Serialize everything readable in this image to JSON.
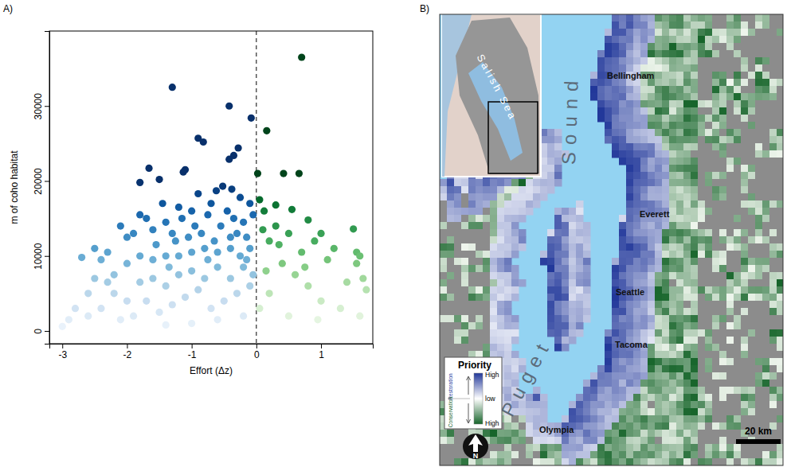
{
  "chart_data": [
    {
      "type": "scatter",
      "panel_label": "A)",
      "x_label": "Effort (Δz)",
      "y_label": "m of coho habitat",
      "xlim": [
        -3.2,
        1.8
      ],
      "ylim": [
        -1700,
        40000
      ],
      "xticks": [
        -3,
        -2,
        -1,
        0,
        1
      ],
      "yticks": [
        0,
        10000,
        20000,
        30000
      ],
      "reference_line": {
        "x": 0,
        "line_style": "dashed"
      },
      "series": [
        {
          "marker": "circle",
          "x": [
            -1.3,
            -0.42,
            0.7,
            -0.08,
            -0.9,
            -0.82,
            -0.28,
            -0.35,
            -0.42,
            0.16,
            0.02,
            0.42,
            0.66,
            -1.66,
            -1.1,
            -1.13,
            -1.8,
            -1.5,
            -0.52,
            -0.38,
            -0.62,
            -0.9,
            -1.45,
            -1.2,
            -0.25,
            -0.1,
            0.05,
            0.12,
            0.3,
            0.55,
            0.8,
            1.0,
            1.5,
            1.55,
            1.6,
            1.55,
            1.65,
            1.7,
            1.6,
            1.2,
            1.1,
            0.9,
            0.7,
            0.5,
            0.3,
            0.2,
            0.1,
            0.4,
            0.6,
            0.8,
            1.0,
            1.3,
            0.2,
            0.05,
            0.5,
            0.15,
            0.35,
            0.75,
            1.4,
            0.95,
            -2.5,
            -2.7,
            -2.4,
            -2.3,
            -2.9,
            -3.0,
            -2.8,
            -2.6,
            -2.2,
            -2.0,
            -2.1,
            -1.9,
            -1.8,
            -1.7,
            -1.6,
            -1.55,
            -1.4,
            -1.3,
            -1.25,
            -1.15,
            -1.0,
            -0.95,
            -0.85,
            -0.75,
            -0.7,
            -0.65,
            -0.55,
            -0.45,
            -0.35,
            -0.3,
            -0.2,
            -0.15,
            -0.05,
            -0.1,
            -0.25,
            -0.4,
            -0.6,
            -0.8,
            -1.0,
            -1.2,
            -1.4,
            -1.6,
            -1.8,
            -2.0,
            -2.2,
            -2.4,
            -2.6,
            -2.0,
            -1.8,
            -1.6,
            -1.4,
            -1.2,
            -1.0,
            -0.8,
            -0.6,
            -0.4,
            -0.2,
            -0.1,
            -0.3,
            -0.5,
            -0.7,
            -0.9,
            -1.1,
            -1.3,
            -1.5,
            -1.7,
            -1.9,
            -2.1,
            -0.2,
            -0.6,
            -1.0,
            -1.4,
            -0.4,
            -0.75,
            -1.05,
            -1.35,
            -0.15,
            -0.05,
            -2.3,
            -2.5
          ],
          "values": [
            32500,
            30000,
            36500,
            28400,
            25700,
            25200,
            24400,
            23400,
            22900,
            26700,
            21000,
            21000,
            21000,
            21700,
            21500,
            21200,
            19800,
            20200,
            19300,
            18900,
            18700,
            18300,
            17000,
            16500,
            17800,
            17000,
            17500,
            16000,
            16800,
            16200,
            14800,
            13000,
            13600,
            10500,
            10000,
            9000,
            7000,
            5500,
            2000,
            11000,
            9500,
            12000,
            10500,
            13000,
            14000,
            12000,
            13500,
            9000,
            7500,
            6000,
            4000,
            3000,
            5000,
            3000,
            2000,
            8000,
            11500,
            8500,
            6500,
            1500,
            11000,
            9800,
            9500,
            10500,
            1500,
            600,
            3000,
            5000,
            7500,
            12500,
            14000,
            13000,
            15500,
            15000,
            13500,
            11500,
            14500,
            13000,
            12000,
            15000,
            16000,
            14000,
            13000,
            15500,
            17000,
            12000,
            14000,
            16000,
            15000,
            13000,
            14500,
            12500,
            15500,
            11000,
            10000,
            11000,
            10500,
            11000,
            10500,
            10000,
            10000,
            9500,
            10000,
            9000,
            5000,
            3000,
            2000,
            4000,
            6500,
            7000,
            6000,
            7500,
            8000,
            7000,
            8500,
            7000,
            8500,
            6000,
            5000,
            4000,
            3000,
            5500,
            4500,
            3500,
            2500,
            4000,
            2000,
            1500,
            2000,
            1500,
            1000,
            800,
            12500,
            9500,
            12500,
            8500,
            9500,
            7500,
            6500,
            7000
          ]
        }
      ]
    },
    {
      "type": "map",
      "panel_label": "B)",
      "inset_label": "Salish Sea",
      "water_labels": [
        "Puget",
        "Sound"
      ],
      "places": [
        "Bellingham",
        "Everett",
        "Seattle",
        "Tacoma",
        "Olympia"
      ],
      "legend_title": "Priority",
      "legend_labels": [
        "High",
        "low",
        "High"
      ],
      "legend_groups": [
        "Restoration",
        "Conservation"
      ],
      "north": "N",
      "scale_bar": "20 km"
    }
  ]
}
